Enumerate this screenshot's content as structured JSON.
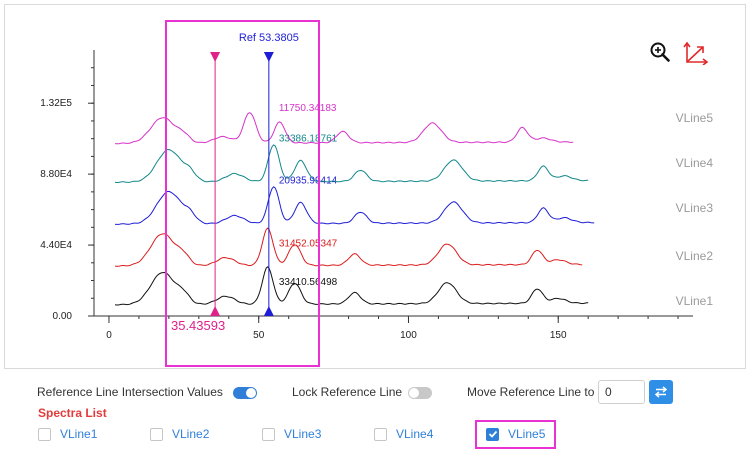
{
  "chart_data": {
    "type": "line",
    "x_ticks": [
      0,
      50,
      100,
      150
    ],
    "y_ticks": [
      "0.00",
      "4.40E4",
      "8.80E4",
      "1.32E5"
    ],
    "xlim": [
      -5,
      195
    ],
    "ylim": [
      0,
      165000
    ],
    "series": [
      {
        "name": "VLine1",
        "color": "#111111",
        "offset": 7000,
        "x_end": 160,
        "intersection_label": "33410.56498",
        "peaks": [
          [
            18,
            4.0,
            20000
          ],
          [
            25,
            2.0,
            5000
          ],
          [
            39,
            3.0,
            5000
          ],
          [
            53,
            1.8,
            23000
          ],
          [
            62,
            2.0,
            13000
          ],
          [
            82,
            2.0,
            7000
          ],
          [
            113,
            3.0,
            13000
          ],
          [
            143,
            1.8,
            9000
          ],
          [
            150,
            2.5,
            3000
          ]
        ]
      },
      {
        "name": "VLine2",
        "color": "#d91c1c",
        "offset": 31000,
        "x_end": 158,
        "intersection_label": "31452.05347",
        "peaks": [
          [
            18,
            4.0,
            20000
          ],
          [
            25,
            2.0,
            5000
          ],
          [
            39,
            3.0,
            5000
          ],
          [
            53,
            1.8,
            23000
          ],
          [
            62,
            2.0,
            13000
          ],
          [
            82,
            2.0,
            7000
          ],
          [
            113,
            3.0,
            13000
          ],
          [
            143,
            1.8,
            9000
          ],
          [
            150,
            2.5,
            3000
          ]
        ]
      },
      {
        "name": "VLine3",
        "color": "#1e1ed6",
        "offset": 57000,
        "x_end": 162,
        "intersection_label": "20935.99414",
        "peaks": [
          [
            20,
            4.0,
            20000
          ],
          [
            27,
            2.0,
            5000
          ],
          [
            42,
            3.0,
            5000
          ],
          [
            55,
            1.8,
            23000
          ],
          [
            64,
            2.0,
            13000
          ],
          [
            84,
            2.0,
            7000
          ],
          [
            115,
            3.0,
            13000
          ],
          [
            145,
            1.8,
            9000
          ],
          [
            152,
            2.5,
            3000
          ]
        ]
      },
      {
        "name": "VLine4",
        "color": "#12878a",
        "offset": 83000,
        "x_end": 160,
        "intersection_label": "33386.18761",
        "peaks": [
          [
            20,
            4.0,
            20000
          ],
          [
            27,
            2.0,
            5000
          ],
          [
            42,
            3.0,
            5000
          ],
          [
            55,
            1.8,
            23000
          ],
          [
            64,
            2.0,
            13000
          ],
          [
            84,
            2.0,
            7000
          ],
          [
            115,
            3.0,
            13000
          ],
          [
            145,
            1.8,
            9000
          ],
          [
            152,
            2.5,
            3000
          ]
        ]
      },
      {
        "name": "VLine5",
        "color": "#d633c9",
        "offset": 107000,
        "x_end": 155,
        "intersection_label": "11750.34183",
        "peaks": [
          [
            18,
            4.0,
            16000
          ],
          [
            25,
            2.0,
            4000
          ],
          [
            38,
            3.0,
            4000
          ],
          [
            47,
            2.0,
            19000
          ],
          [
            57,
            1.8,
            13000
          ],
          [
            78,
            2.0,
            7000
          ],
          [
            108,
            3.0,
            12000
          ],
          [
            138,
            1.8,
            9000
          ],
          [
            145,
            2.5,
            2500
          ]
        ]
      }
    ],
    "ref_line": {
      "x": 53.3805,
      "label": "Ref 53.3805",
      "color": "#1e1ed6"
    },
    "cursor_line": {
      "x": 35.43593,
      "label": "35.43593",
      "color": "#e0218a"
    }
  },
  "toolbar": {
    "zoom_icon": "zoom-in-icon",
    "axes_icon": "reset-axes-icon"
  },
  "controls": {
    "intersection_label": "Reference Line Intersection Values",
    "intersection_on": true,
    "lock_label": "Lock Reference Line",
    "lock_on": false,
    "move_label": "Move Reference Line to",
    "move_value": "0",
    "swap_icon": "swap-icon"
  },
  "spectra": {
    "title": "Spectra List",
    "items": [
      {
        "label": "VLine1",
        "checked": false
      },
      {
        "label": "VLine2",
        "checked": false
      },
      {
        "label": "VLine3",
        "checked": false
      },
      {
        "label": "VLine4",
        "checked": false
      },
      {
        "label": "VLine5",
        "checked": true
      }
    ]
  },
  "colors": {
    "accent": "#2f7fd9",
    "highlight": "#e833d2",
    "spectra_title": "#e23b3b"
  }
}
